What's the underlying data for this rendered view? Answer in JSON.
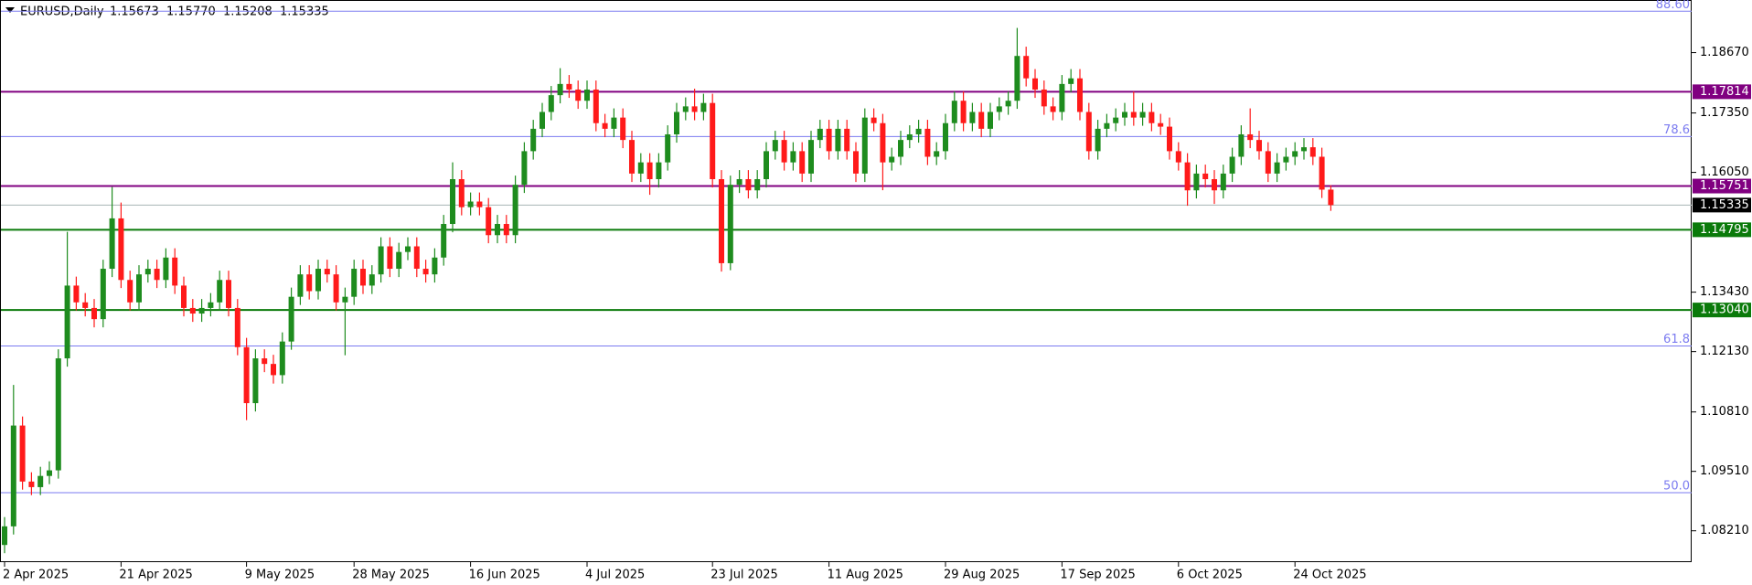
{
  "chart_data": {
    "type": "candlestick",
    "header": {
      "symbol": "EURUSD,Daily",
      "quote": [
        "1.15673",
        "1.15770",
        "1.15208",
        "1.15335"
      ]
    },
    "categories": [
      "2 Apr 2025",
      null,
      null,
      null,
      null,
      null,
      null,
      null,
      null,
      null,
      null,
      null,
      null,
      "21 Apr 2025",
      null,
      null,
      null,
      null,
      null,
      null,
      null,
      null,
      null,
      null,
      null,
      null,
      null,
      "9 May 2025",
      null,
      null,
      null,
      null,
      null,
      null,
      null,
      null,
      null,
      null,
      null,
      "28 May 2025",
      null,
      null,
      null,
      null,
      null,
      null,
      null,
      null,
      null,
      null,
      null,
      null,
      "16 Jun 2025",
      null,
      null,
      null,
      null,
      null,
      null,
      null,
      null,
      null,
      null,
      null,
      null,
      "4 Jul 2025",
      null,
      null,
      null,
      null,
      null,
      null,
      null,
      null,
      null,
      null,
      null,
      null,
      null,
      "23 Jul 2025",
      null,
      null,
      null,
      null,
      null,
      null,
      null,
      null,
      null,
      null,
      null,
      null,
      "11 Aug 2025",
      null,
      null,
      null,
      null,
      null,
      null,
      null,
      null,
      null,
      null,
      null,
      null,
      "29 Aug 2025",
      null,
      null,
      null,
      null,
      null,
      null,
      null,
      null,
      null,
      null,
      null,
      null,
      "17 Sep 2025",
      null,
      null,
      null,
      null,
      null,
      null,
      null,
      null,
      null,
      null,
      null,
      null,
      "6 Oct 2025",
      null,
      null,
      null,
      null,
      null,
      null,
      null,
      null,
      null,
      null,
      null,
      null,
      "24 Oct 2025",
      null,
      null,
      null,
      null
    ],
    "open": [
      1.079,
      1.08307,
      1.10512,
      1.09287,
      1.09165,
      1.0941,
      1.09532,
      1.11982,
      1.13574,
      1.13207,
      1.13084,
      1.1284,
      1.13942,
      1.15044,
      1.13697,
      1.13207,
      1.13819,
      1.13942,
      1.13697,
      1.14187,
      1.13574,
      1.13084,
      1.12962,
      1.13084,
      1.13207,
      1.13697,
      1.13084,
      1.12227,
      1.11002,
      1.11982,
      1.1186,
      1.11615,
      1.1235,
      1.13329,
      1.13819,
      1.13452,
      1.13942,
      1.13819,
      1.13207,
      1.13329,
      1.13942,
      1.13574,
      1.13819,
      1.14432,
      1.13942,
      1.14309,
      1.14432,
      1.13942,
      1.13819,
      1.14187,
      1.14922,
      1.15902,
      1.15289,
      1.15412,
      1.15289,
      1.14677,
      1.14922,
      1.14677,
      1.15779,
      1.16514,
      1.17004,
      1.17372,
      1.17739,
      1.17984,
      1.17862,
      1.17617,
      1.17862,
      1.17127,
      1.17004,
      1.17249,
      1.16759,
      1.16024,
      1.16269,
      1.15902,
      1.16269,
      1.16882,
      1.17372,
      1.17494,
      1.17372,
      1.17568,
      1.15902,
      1.14064,
      1.15779,
      1.15902,
      1.15657,
      1.15902,
      1.16514,
      1.16759,
      1.16269,
      1.16514,
      1.16024,
      1.16759,
      1.17004,
      1.16514,
      1.17004,
      1.16514,
      1.16024,
      1.17249,
      1.17127,
      1.16269,
      1.16392,
      1.16759,
      1.16882,
      1.17004,
      1.16392,
      1.16514,
      1.17127,
      1.17617,
      1.17127,
      1.17372,
      1.17004,
      1.17372,
      1.17494,
      1.17617,
      1.18597,
      1.18107,
      1.17862,
      1.17494,
      1.17372,
      1.17984,
      1.18107,
      1.17372,
      1.16514,
      1.17004,
      1.17127,
      1.17249,
      1.17372,
      1.17249,
      1.17372,
      1.17127,
      1.1705,
      1.16514,
      1.16269,
      1.15657,
      1.16024,
      1.15902,
      1.15657,
      1.16024,
      1.16392,
      1.16882,
      1.16759,
      1.16514,
      1.16024,
      1.16269,
      1.16392,
      1.16514,
      1.166,
      1.16392,
      1.15673
    ],
    "high": [
      1.0851,
      1.114,
      1.1071,
      1.0949,
      1.0961,
      1.0973,
      1.1218,
      1.1475,
      1.1377,
      1.1341,
      1.1328,
      1.1414,
      1.1573,
      1.1539,
      1.139,
      1.1402,
      1.1414,
      1.1414,
      1.1439,
      1.1439,
      1.1377,
      1.1328,
      1.1328,
      1.1341,
      1.139,
      1.139,
      1.1328,
      1.1243,
      1.1218,
      1.1218,
      1.1206,
      1.1255,
      1.1353,
      1.1402,
      1.1402,
      1.1414,
      1.1414,
      1.1402,
      1.1353,
      1.1414,
      1.1414,
      1.1402,
      1.1463,
      1.1463,
      1.1451,
      1.1463,
      1.1463,
      1.1414,
      1.1439,
      1.1512,
      1.1627,
      1.161,
      1.1561,
      1.1561,
      1.1549,
      1.1512,
      1.1512,
      1.1598,
      1.1671,
      1.172,
      1.1757,
      1.1794,
      1.1833,
      1.1818,
      1.1806,
      1.1806,
      1.1806,
      1.1733,
      1.1745,
      1.1745,
      1.1696,
      1.1647,
      1.1647,
      1.1647,
      1.1708,
      1.1757,
      1.1769,
      1.1788,
      1.1777,
      1.1777,
      1.161,
      1.1598,
      1.161,
      1.161,
      1.161,
      1.1671,
      1.1696,
      1.1696,
      1.1671,
      1.1671,
      1.1696,
      1.172,
      1.172,
      1.172,
      1.172,
      1.1671,
      1.1745,
      1.1745,
      1.1733,
      1.1659,
      1.1696,
      1.1708,
      1.172,
      1.172,
      1.1671,
      1.1733,
      1.1782,
      1.1782,
      1.1757,
      1.1757,
      1.1757,
      1.1769,
      1.1782,
      1.1921,
      1.188,
      1.1831,
      1.1806,
      1.1769,
      1.1818,
      1.1831,
      1.1831,
      1.1757,
      1.172,
      1.1733,
      1.1745,
      1.1757,
      1.1782,
      1.1757,
      1.1757,
      1.1733,
      1.1725,
      1.1671,
      1.1647,
      1.1622,
      1.1622,
      1.161,
      1.1622,
      1.1659,
      1.1708,
      1.1745,
      1.1696,
      1.1671,
      1.1647,
      1.1659,
      1.1671,
      1.168,
      1.168,
      1.1659,
      1.1577
    ],
    "low": [
      1.0772,
      1.0813,
      1.0911,
      1.0899,
      1.0899,
      1.0923,
      1.0935,
      1.118,
      1.1303,
      1.129,
      1.1266,
      1.1266,
      1.1376,
      1.1352,
      1.1303,
      1.1303,
      1.1364,
      1.1352,
      1.1352,
      1.1339,
      1.129,
      1.1278,
      1.1278,
      1.129,
      1.1303,
      1.129,
      1.1205,
      1.1063,
      1.1082,
      1.1168,
      1.1143,
      1.1143,
      1.1217,
      1.1315,
      1.1327,
      1.1327,
      1.1364,
      1.1303,
      1.1205,
      1.1315,
      1.1339,
      1.1339,
      1.1364,
      1.1376,
      1.1376,
      1.1413,
      1.1376,
      1.1364,
      1.1364,
      1.1401,
      1.1474,
      1.1511,
      1.1511,
      1.1511,
      1.145,
      1.145,
      1.145,
      1.145,
      1.156,
      1.1633,
      1.1682,
      1.1719,
      1.1756,
      1.1768,
      1.1744,
      1.1744,
      1.1695,
      1.1682,
      1.1682,
      1.1658,
      1.1584,
      1.1584,
      1.1556,
      1.1572,
      1.1609,
      1.167,
      1.1719,
      1.1719,
      1.1719,
      1.1572,
      1.1388,
      1.1391,
      1.156,
      1.1548,
      1.1548,
      1.1572,
      1.1633,
      1.1609,
      1.1609,
      1.1584,
      1.1584,
      1.1658,
      1.1633,
      1.1633,
      1.1633,
      1.1584,
      1.1584,
      1.1695,
      1.1566,
      1.1609,
      1.1621,
      1.1658,
      1.167,
      1.1621,
      1.1621,
      1.1633,
      1.1695,
      1.1695,
      1.1695,
      1.1682,
      1.1682,
      1.1719,
      1.1731,
      1.1744,
      1.1793,
      1.1768,
      1.1731,
      1.1719,
      1.1719,
      1.178,
      1.1719,
      1.1633,
      1.1633,
      1.1682,
      1.1695,
      1.1707,
      1.1707,
      1.1707,
      1.1695,
      1.1687,
      1.1633,
      1.1609,
      1.1532,
      1.1548,
      1.1572,
      1.1536,
      1.1548,
      1.1584,
      1.1621,
      1.1658,
      1.1633,
      1.1584,
      1.1584,
      1.1609,
      1.1621,
      1.1633,
      1.1621,
      1.1549,
      1.15208
    ],
    "close": [
      1.08307,
      1.10512,
      1.09287,
      1.09165,
      1.0941,
      1.09532,
      1.11982,
      1.13574,
      1.13207,
      1.13084,
      1.1284,
      1.13942,
      1.15044,
      1.13697,
      1.13207,
      1.13819,
      1.13942,
      1.13697,
      1.14187,
      1.13574,
      1.13084,
      1.12962,
      1.13084,
      1.13207,
      1.13697,
      1.13084,
      1.12227,
      1.11002,
      1.11982,
      1.1186,
      1.11615,
      1.1235,
      1.13329,
      1.13819,
      1.13452,
      1.13942,
      1.13819,
      1.13207,
      1.13329,
      1.13942,
      1.13574,
      1.13819,
      1.14432,
      1.13942,
      1.14309,
      1.14432,
      1.13942,
      1.13819,
      1.14187,
      1.14922,
      1.15902,
      1.15289,
      1.15412,
      1.15289,
      1.14677,
      1.14922,
      1.14677,
      1.15779,
      1.16514,
      1.17004,
      1.17372,
      1.17739,
      1.17984,
      1.17862,
      1.17617,
      1.17862,
      1.17127,
      1.17004,
      1.17249,
      1.16759,
      1.16024,
      1.16269,
      1.15902,
      1.16269,
      1.16882,
      1.17372,
      1.17494,
      1.17372,
      1.17568,
      1.15902,
      1.14064,
      1.15779,
      1.15902,
      1.15657,
      1.15902,
      1.16514,
      1.16759,
      1.16269,
      1.16514,
      1.16024,
      1.16759,
      1.17004,
      1.16514,
      1.17004,
      1.16514,
      1.16024,
      1.17249,
      1.17127,
      1.16269,
      1.16392,
      1.16759,
      1.16882,
      1.17004,
      1.16392,
      1.16514,
      1.17127,
      1.17617,
      1.17127,
      1.17372,
      1.17004,
      1.17372,
      1.17494,
      1.17617,
      1.18597,
      1.18107,
      1.17862,
      1.17494,
      1.17372,
      1.17984,
      1.18107,
      1.17372,
      1.16514,
      1.17004,
      1.17127,
      1.17249,
      1.17372,
      1.17249,
      1.17372,
      1.17127,
      1.1705,
      1.16514,
      1.16269,
      1.15657,
      1.16024,
      1.15902,
      1.15657,
      1.16024,
      1.16392,
      1.16882,
      1.16759,
      1.16514,
      1.16024,
      1.16269,
      1.16392,
      1.16514,
      1.166,
      1.16392,
      1.15673,
      1.15335
    ],
    "bull_color": "#1e8c1e",
    "bear_color": "#ff1a1a",
    "ylim": [
      1.07524,
      1.19821
    ],
    "yticks": [
      {
        "value": 1.1867,
        "label": "1.18670"
      },
      {
        "value": 1.1735,
        "label": "1.17350"
      },
      {
        "value": 1.1605,
        "label": "1.16050"
      },
      {
        "value": 1.1343,
        "label": "1.13430"
      },
      {
        "value": 1.1213,
        "label": "1.12130"
      },
      {
        "value": 1.1081,
        "label": "1.10810"
      },
      {
        "value": 1.0951,
        "label": "1.09510"
      },
      {
        "value": 1.0821,
        "label": "1.08210"
      }
    ],
    "levels": [
      {
        "price": 1.17814,
        "color": "#800080"
      },
      {
        "price": 1.15751,
        "color": "#800080"
      },
      {
        "price": 1.15335,
        "color": "#a8b4b4",
        "label_color": "#000000"
      },
      {
        "price": 1.14795,
        "color": "#0a7a0a"
      },
      {
        "price": {
          "value": 1.1304,
          "label": "1.13040"
        },
        "color": "#0a7a0a"
      }
    ],
    "fib_levels": [
      {
        "label": "88.60",
        "price": 1.19576
      },
      {
        "label": "78.6",
        "price": 1.16833
      },
      {
        "label": "61.8",
        "price": 1.12252
      },
      {
        "label": "50.0",
        "price": 1.09043
      }
    ],
    "fib_color": "#7b7bf0"
  }
}
